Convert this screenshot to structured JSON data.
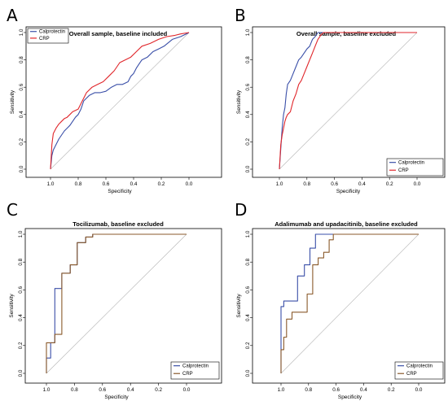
{
  "chart_data": [
    {
      "type": "line",
      "panel_letter": "A",
      "title": "Overall sample, baseline included",
      "xlabel": "Specificity",
      "ylabel": "Sensitivity",
      "xlim": [
        1.0,
        0.0
      ],
      "ylim": [
        0.0,
        1.0
      ],
      "x_ticks": [
        "1.0",
        "0.8",
        "0.6",
        "0.4",
        "0.2",
        "0.0"
      ],
      "y_ticks": [
        "0.0",
        "0.2",
        "0.4",
        "0.6",
        "0.8",
        "1.0"
      ],
      "legend_position": "top-left",
      "series": [
        {
          "name": "Calprotectin",
          "color": "#3a4fa8",
          "x": [
            1.0,
            0.99,
            0.98,
            0.96,
            0.94,
            0.92,
            0.9,
            0.88,
            0.86,
            0.84,
            0.82,
            0.8,
            0.78,
            0.76,
            0.72,
            0.68,
            0.64,
            0.6,
            0.56,
            0.52,
            0.48,
            0.44,
            0.42,
            0.4,
            0.38,
            0.36,
            0.34,
            0.3,
            0.26,
            0.22,
            0.18,
            0.12,
            0.06,
            0.02,
            0.0
          ],
          "y": [
            0.0,
            0.1,
            0.14,
            0.18,
            0.22,
            0.25,
            0.28,
            0.3,
            0.32,
            0.35,
            0.38,
            0.4,
            0.44,
            0.5,
            0.54,
            0.56,
            0.56,
            0.57,
            0.6,
            0.62,
            0.62,
            0.64,
            0.68,
            0.7,
            0.74,
            0.77,
            0.8,
            0.82,
            0.86,
            0.88,
            0.9,
            0.95,
            0.97,
            0.99,
            1.0
          ]
        },
        {
          "name": "CRP",
          "color": "#e0262b",
          "x": [
            1.0,
            0.99,
            0.98,
            0.96,
            0.94,
            0.92,
            0.9,
            0.88,
            0.86,
            0.84,
            0.82,
            0.8,
            0.78,
            0.76,
            0.74,
            0.7,
            0.66,
            0.62,
            0.58,
            0.54,
            0.5,
            0.46,
            0.42,
            0.38,
            0.34,
            0.28,
            0.22,
            0.16,
            0.1,
            0.06,
            0.0
          ],
          "y": [
            0.0,
            0.18,
            0.26,
            0.3,
            0.33,
            0.35,
            0.37,
            0.38,
            0.4,
            0.42,
            0.43,
            0.44,
            0.48,
            0.52,
            0.56,
            0.6,
            0.62,
            0.64,
            0.68,
            0.72,
            0.78,
            0.8,
            0.82,
            0.86,
            0.9,
            0.92,
            0.95,
            0.97,
            0.98,
            0.99,
            1.0
          ]
        }
      ]
    },
    {
      "type": "line",
      "panel_letter": "B",
      "title": "Overall sample, baseline excluded",
      "xlabel": "Specificity",
      "ylabel": "Sensitivity",
      "xlim": [
        1.0,
        0.0
      ],
      "ylim": [
        0.0,
        1.0
      ],
      "x_ticks": [
        "1.0",
        "0.8",
        "0.6",
        "0.4",
        "0.2",
        "0.0"
      ],
      "y_ticks": [
        "0.0",
        "0.2",
        "0.4",
        "0.6",
        "0.8",
        "1.0"
      ],
      "legend_position": "bottom-right",
      "series": [
        {
          "name": "Calprotectin",
          "color": "#3a4fa8",
          "x": [
            1.0,
            0.99,
            0.98,
            0.97,
            0.96,
            0.95,
            0.94,
            0.92,
            0.9,
            0.88,
            0.86,
            0.84,
            0.82,
            0.8,
            0.78,
            0.76,
            0.74,
            0.72,
            0.7,
            0.66,
            0.0
          ],
          "y": [
            0.0,
            0.15,
            0.3,
            0.4,
            0.45,
            0.55,
            0.62,
            0.65,
            0.7,
            0.75,
            0.8,
            0.82,
            0.85,
            0.88,
            0.9,
            0.95,
            0.97,
            1.0,
            1.0,
            1.0,
            1.0
          ]
        },
        {
          "name": "CRP",
          "color": "#e0262b",
          "x": [
            1.0,
            0.99,
            0.98,
            0.97,
            0.96,
            0.95,
            0.94,
            0.92,
            0.9,
            0.88,
            0.86,
            0.84,
            0.82,
            0.8,
            0.78,
            0.76,
            0.74,
            0.72,
            0.7,
            0.68,
            0.0
          ],
          "y": [
            0.0,
            0.18,
            0.25,
            0.3,
            0.35,
            0.38,
            0.4,
            0.42,
            0.5,
            0.55,
            0.62,
            0.65,
            0.7,
            0.75,
            0.8,
            0.85,
            0.9,
            0.95,
            0.98,
            1.0,
            1.0
          ]
        }
      ]
    },
    {
      "type": "line",
      "panel_letter": "C",
      "title": "Tocilizumab, baseline excluded",
      "xlabel": "Specificity",
      "ylabel": "Sensitivity",
      "xlim": [
        1.0,
        0.0
      ],
      "ylim": [
        0.0,
        1.0
      ],
      "x_ticks": [
        "1.0",
        "0.8",
        "0.6",
        "0.4",
        "0.2",
        "0.0"
      ],
      "y_ticks": [
        "0.0",
        "0.2",
        "0.4",
        "0.6",
        "0.8",
        "1.0"
      ],
      "legend_position": "bottom-right",
      "series": [
        {
          "name": "Calprotectin",
          "color": "#3a4fa8",
          "x": [
            1.0,
            1.0,
            0.97,
            0.97,
            0.94,
            0.94,
            0.89,
            0.89,
            0.83,
            0.83,
            0.78,
            0.78,
            0.72,
            0.72,
            0.67,
            0.67,
            0.0
          ],
          "y": [
            0.0,
            0.11,
            0.11,
            0.22,
            0.22,
            0.61,
            0.61,
            0.72,
            0.72,
            0.78,
            0.78,
            0.94,
            0.94,
            0.98,
            0.98,
            1.0,
            1.0
          ]
        },
        {
          "name": "CRP",
          "color": "#8a5a2b",
          "x": [
            1.0,
            1.0,
            0.94,
            0.94,
            0.89,
            0.89,
            0.83,
            0.83,
            0.78,
            0.78,
            0.72,
            0.72,
            0.67,
            0.67,
            0.0
          ],
          "y": [
            0.0,
            0.22,
            0.22,
            0.28,
            0.28,
            0.72,
            0.72,
            0.78,
            0.78,
            0.94,
            0.94,
            0.98,
            0.98,
            1.0,
            1.0
          ]
        }
      ]
    },
    {
      "type": "line",
      "panel_letter": "D",
      "title": "Adalimumab and upadacitinib, baseline excluded",
      "xlabel": "Specificity",
      "ylabel": "Sensitivity",
      "xlim": [
        1.0,
        0.0
      ],
      "ylim": [
        0.0,
        1.0
      ],
      "x_ticks": [
        "1.0",
        "0.8",
        "0.6",
        "0.4",
        "0.2",
        "0.0"
      ],
      "y_ticks": [
        "0.0",
        "0.2",
        "0.4",
        "0.6",
        "0.8",
        "1.0"
      ],
      "legend_position": "bottom-right",
      "series": [
        {
          "name": "Calprotectin",
          "color": "#3a4fa8",
          "x": [
            1.0,
            1.0,
            0.98,
            0.98,
            0.96,
            0.96,
            0.88,
            0.88,
            0.83,
            0.83,
            0.79,
            0.79,
            0.75,
            0.75,
            0.71,
            0.0
          ],
          "y": [
            0.0,
            0.48,
            0.48,
            0.52,
            0.52,
            0.52,
            0.52,
            0.7,
            0.7,
            0.78,
            0.78,
            0.9,
            0.9,
            1.0,
            1.0,
            1.0
          ]
        },
        {
          "name": "CRP",
          "color": "#8a5a2b",
          "x": [
            1.0,
            1.0,
            0.98,
            0.98,
            0.96,
            0.96,
            0.92,
            0.92,
            0.86,
            0.86,
            0.81,
            0.81,
            0.77,
            0.77,
            0.73,
            0.73,
            0.69,
            0.69,
            0.65,
            0.65,
            0.62,
            0.62,
            0.0
          ],
          "y": [
            0.0,
            0.17,
            0.17,
            0.26,
            0.26,
            0.39,
            0.39,
            0.44,
            0.44,
            0.44,
            0.44,
            0.57,
            0.57,
            0.78,
            0.78,
            0.83,
            0.83,
            0.87,
            0.87,
            0.96,
            0.96,
            1.0,
            1.0
          ]
        }
      ]
    }
  ]
}
